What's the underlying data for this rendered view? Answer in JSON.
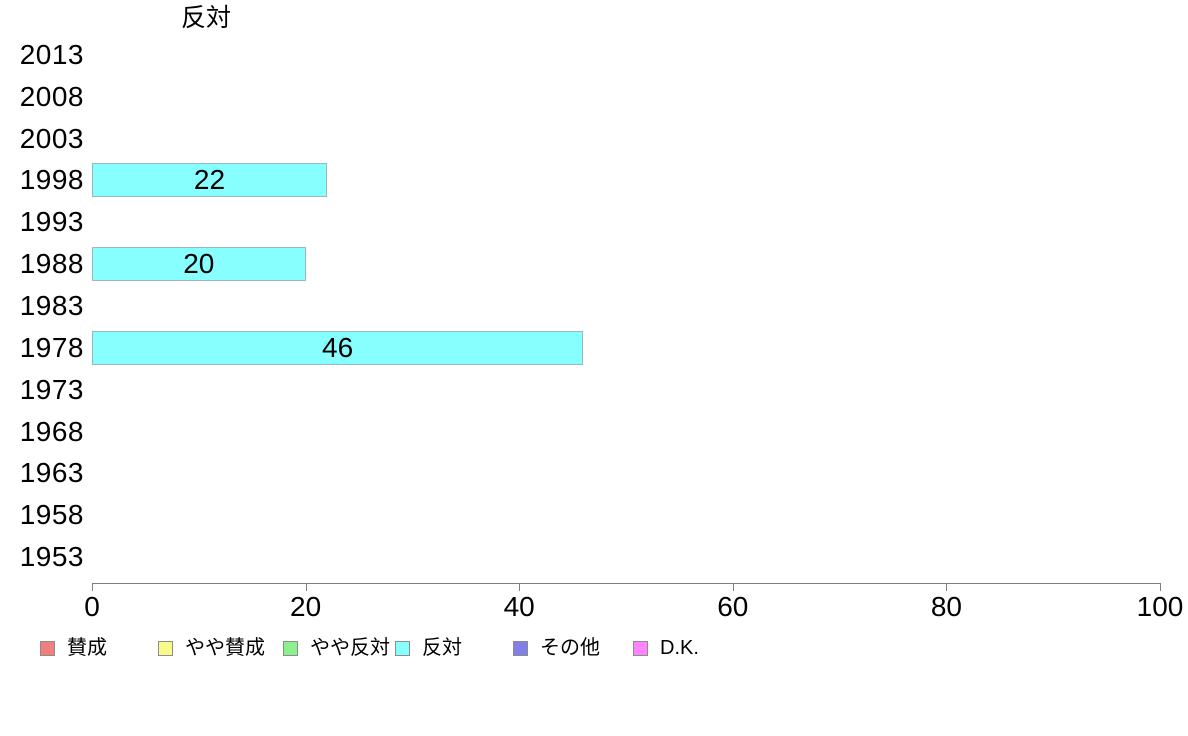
{
  "chart_data": {
    "type": "bar",
    "orientation": "horizontal",
    "title": "反対",
    "categories": [
      "2013",
      "2008",
      "2003",
      "1998",
      "1993",
      "1988",
      "1983",
      "1978",
      "1973",
      "1968",
      "1963",
      "1958",
      "1953"
    ],
    "values": [
      null,
      null,
      null,
      22,
      null,
      20,
      null,
      46,
      null,
      null,
      null,
      null,
      null
    ],
    "bar_color": "#88ffff",
    "bar_border_color": "#95b9bc",
    "xlabel": "",
    "ylabel": "",
    "xlim": [
      0,
      100
    ],
    "x_ticks": [
      0,
      20,
      40,
      60,
      80,
      100
    ],
    "grid": false,
    "legend_position": "bottom",
    "legend": [
      {
        "label": "賛成",
        "color": "#f08080"
      },
      {
        "label": "やや賛成",
        "color": "#fafa8c"
      },
      {
        "label": "やや反対",
        "color": "#8cf08c"
      },
      {
        "label": "反対",
        "color": "#88ffff"
      },
      {
        "label": "その他",
        "color": "#8080e8"
      },
      {
        "label": "D.K.",
        "color": "#ff85ff"
      }
    ]
  }
}
